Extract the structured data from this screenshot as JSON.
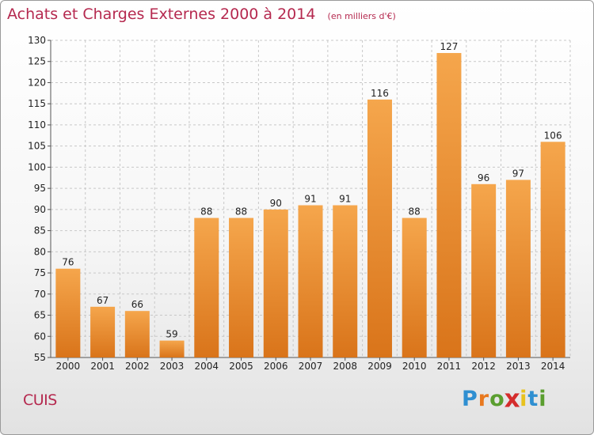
{
  "header": {
    "title": "Achats et Charges Externes 2000 à 2014",
    "subtitle": "(en milliers d'€)"
  },
  "footer": {
    "commune": "CUIS",
    "logo_letters": [
      "P",
      "r",
      "o",
      "x",
      "i",
      "t",
      "i"
    ],
    "logo_colors": [
      "#2f8fd1",
      "#e8781e",
      "#5a9e2f",
      "#d42c2c",
      "#e8c21e",
      "#2f8fd1",
      "#5a9e2f"
    ]
  },
  "colors": {
    "bar_light": "#f5a64c",
    "bar_dark": "#d9741a",
    "title": "#b5294f",
    "grid": "#c8c8c8",
    "axis_text": "#222222"
  },
  "chart_data": {
    "type": "bar",
    "categories": [
      "2000",
      "2001",
      "2002",
      "2003",
      "2004",
      "2005",
      "2006",
      "2007",
      "2008",
      "2009",
      "2010",
      "2011",
      "2012",
      "2013",
      "2014"
    ],
    "values": [
      76,
      67,
      66,
      59,
      88,
      88,
      90,
      91,
      91,
      116,
      88,
      127,
      96,
      97,
      106
    ],
    "ylim": [
      55,
      130
    ],
    "yticks": [
      55,
      60,
      65,
      70,
      75,
      80,
      85,
      90,
      95,
      100,
      105,
      110,
      115,
      120,
      125,
      130
    ],
    "grid": true,
    "data_labels": true
  }
}
